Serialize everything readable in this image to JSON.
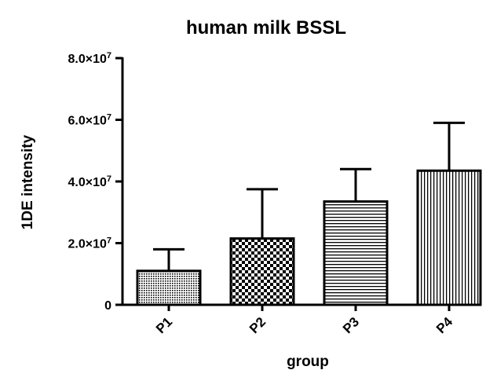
{
  "chart_data": {
    "type": "bar",
    "title": "human milk BSSL",
    "xlabel": "group",
    "ylabel": "1DE intensity",
    "ylim": [
      0,
      80000000
    ],
    "yticks": [
      {
        "value": 0,
        "mantissa": "0",
        "exponent": ""
      },
      {
        "value": 20000000,
        "mantissa": "2.0×10",
        "exponent": "7"
      },
      {
        "value": 40000000,
        "mantissa": "4.0×10",
        "exponent": "7"
      },
      {
        "value": 60000000,
        "mantissa": "6.0×10",
        "exponent": "7"
      },
      {
        "value": 80000000,
        "mantissa": "8.0×10",
        "exponent": "7"
      }
    ],
    "categories": [
      "P1",
      "P2",
      "P3",
      "P4"
    ],
    "values": [
      11000000,
      21500000,
      33500000,
      43500000
    ],
    "error_upper": [
      18000000,
      37500000,
      44000000,
      59000000
    ],
    "fill_patterns": [
      "fine-dots",
      "checker",
      "horizontal-lines",
      "vertical-lines"
    ],
    "grid": false,
    "legend": "none"
  }
}
